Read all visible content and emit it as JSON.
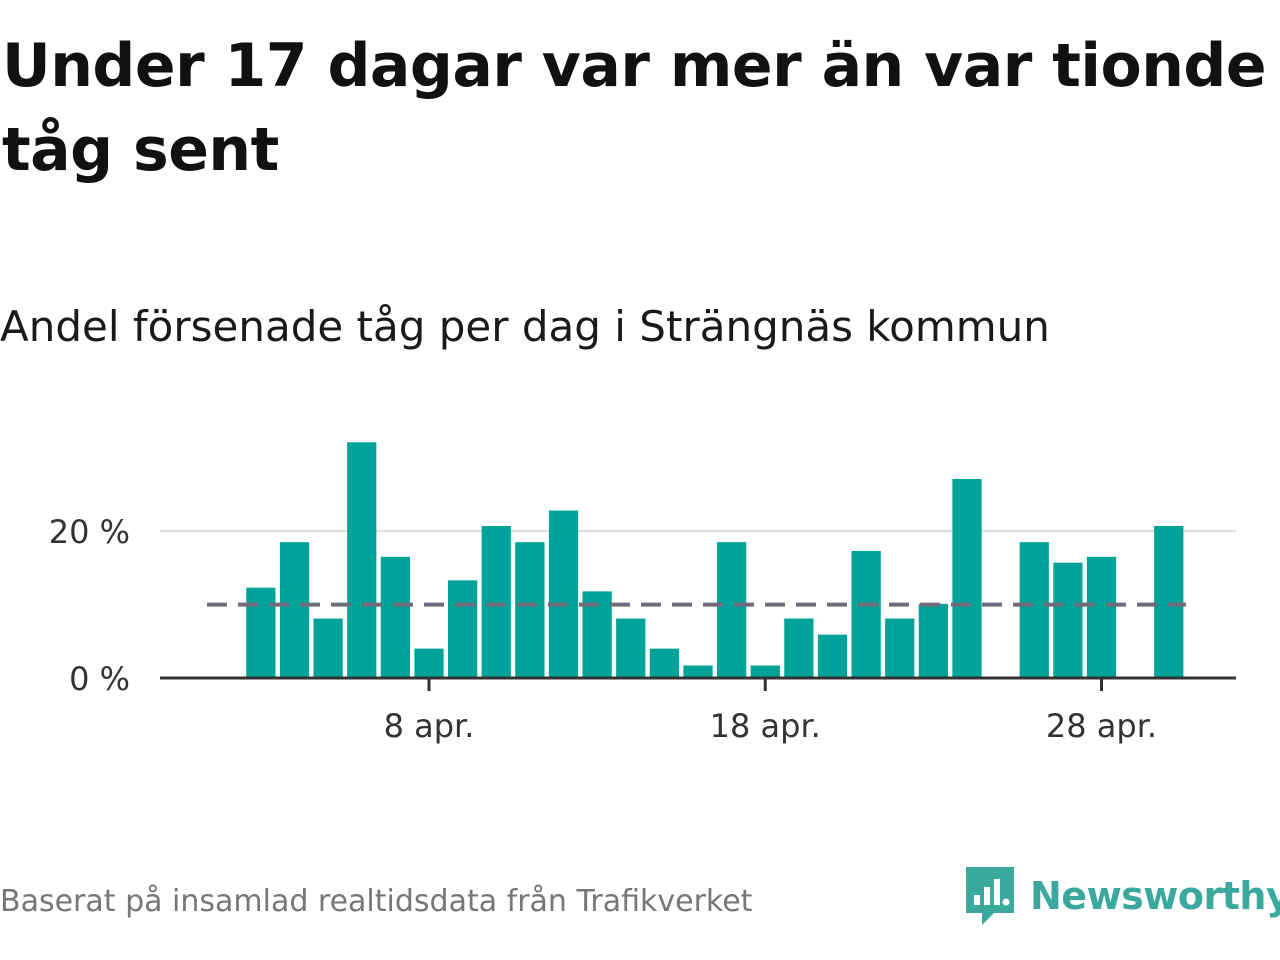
{
  "title": "Under 17 dagar var mer än var tionde tåg sent",
  "subtitle": "Andel försenade tåg per dag i Strängnäs kommun",
  "footer": "Baserat på insamlad realtidsdata från Trafikverket",
  "brand": {
    "name": "Newsworthy",
    "icon": "newsworthy-logo-icon"
  },
  "colors": {
    "bar": "#00a39a",
    "reference": "#706a7a",
    "grid": "#dddddd",
    "axis": "#333333",
    "brand": "#3aa89c"
  },
  "chart_data": {
    "type": "bar",
    "title": "Andel försenade tåg per dag i Strängnäs kommun",
    "xlabel": "",
    "ylabel": "",
    "categories": [
      "1 apr.",
      "2 apr.",
      "3 apr.",
      "4 apr.",
      "5 apr.",
      "6 apr.",
      "7 apr.",
      "8 apr.",
      "9 apr.",
      "10 apr.",
      "11 apr.",
      "12 apr.",
      "13 apr.",
      "14 apr.",
      "15 apr.",
      "16 apr.",
      "17 apr.",
      "18 apr.",
      "19 apr.",
      "20 apr.",
      "21 apr.",
      "22 apr.",
      "23 apr.",
      "24 apr.",
      "25 apr.",
      "26 apr.",
      "27 apr.",
      "28 apr.",
      "29 apr.",
      "30 apr."
    ],
    "x": [
      1,
      2,
      3,
      4,
      5,
      6,
      7,
      8,
      9,
      10,
      11,
      12,
      13,
      14,
      15,
      16,
      17,
      18,
      19,
      20,
      21,
      22,
      23,
      24,
      25,
      26,
      27,
      28,
      29,
      30
    ],
    "values": [
      null,
      null,
      12.3,
      18.5,
      8.1,
      32.1,
      16.5,
      4.0,
      13.3,
      20.7,
      18.5,
      22.8,
      11.8,
      8.1,
      4.0,
      1.7,
      18.5,
      1.7,
      8.1,
      5.9,
      17.3,
      8.1,
      10.1,
      27.1,
      null,
      18.5,
      15.7,
      16.5,
      null,
      20.7
    ],
    "reference_line": 10,
    "ylim": [
      0,
      35
    ],
    "xlim": [
      0,
      32
    ],
    "yticks": [
      {
        "value": 0,
        "label": "0 %"
      },
      {
        "value": 20,
        "label": "20 %"
      }
    ],
    "xticks": [
      {
        "value": 8,
        "label": "8 apr."
      },
      {
        "value": 18,
        "label": "18 apr."
      },
      {
        "value": 28,
        "label": "28 apr."
      }
    ],
    "grid": true
  }
}
